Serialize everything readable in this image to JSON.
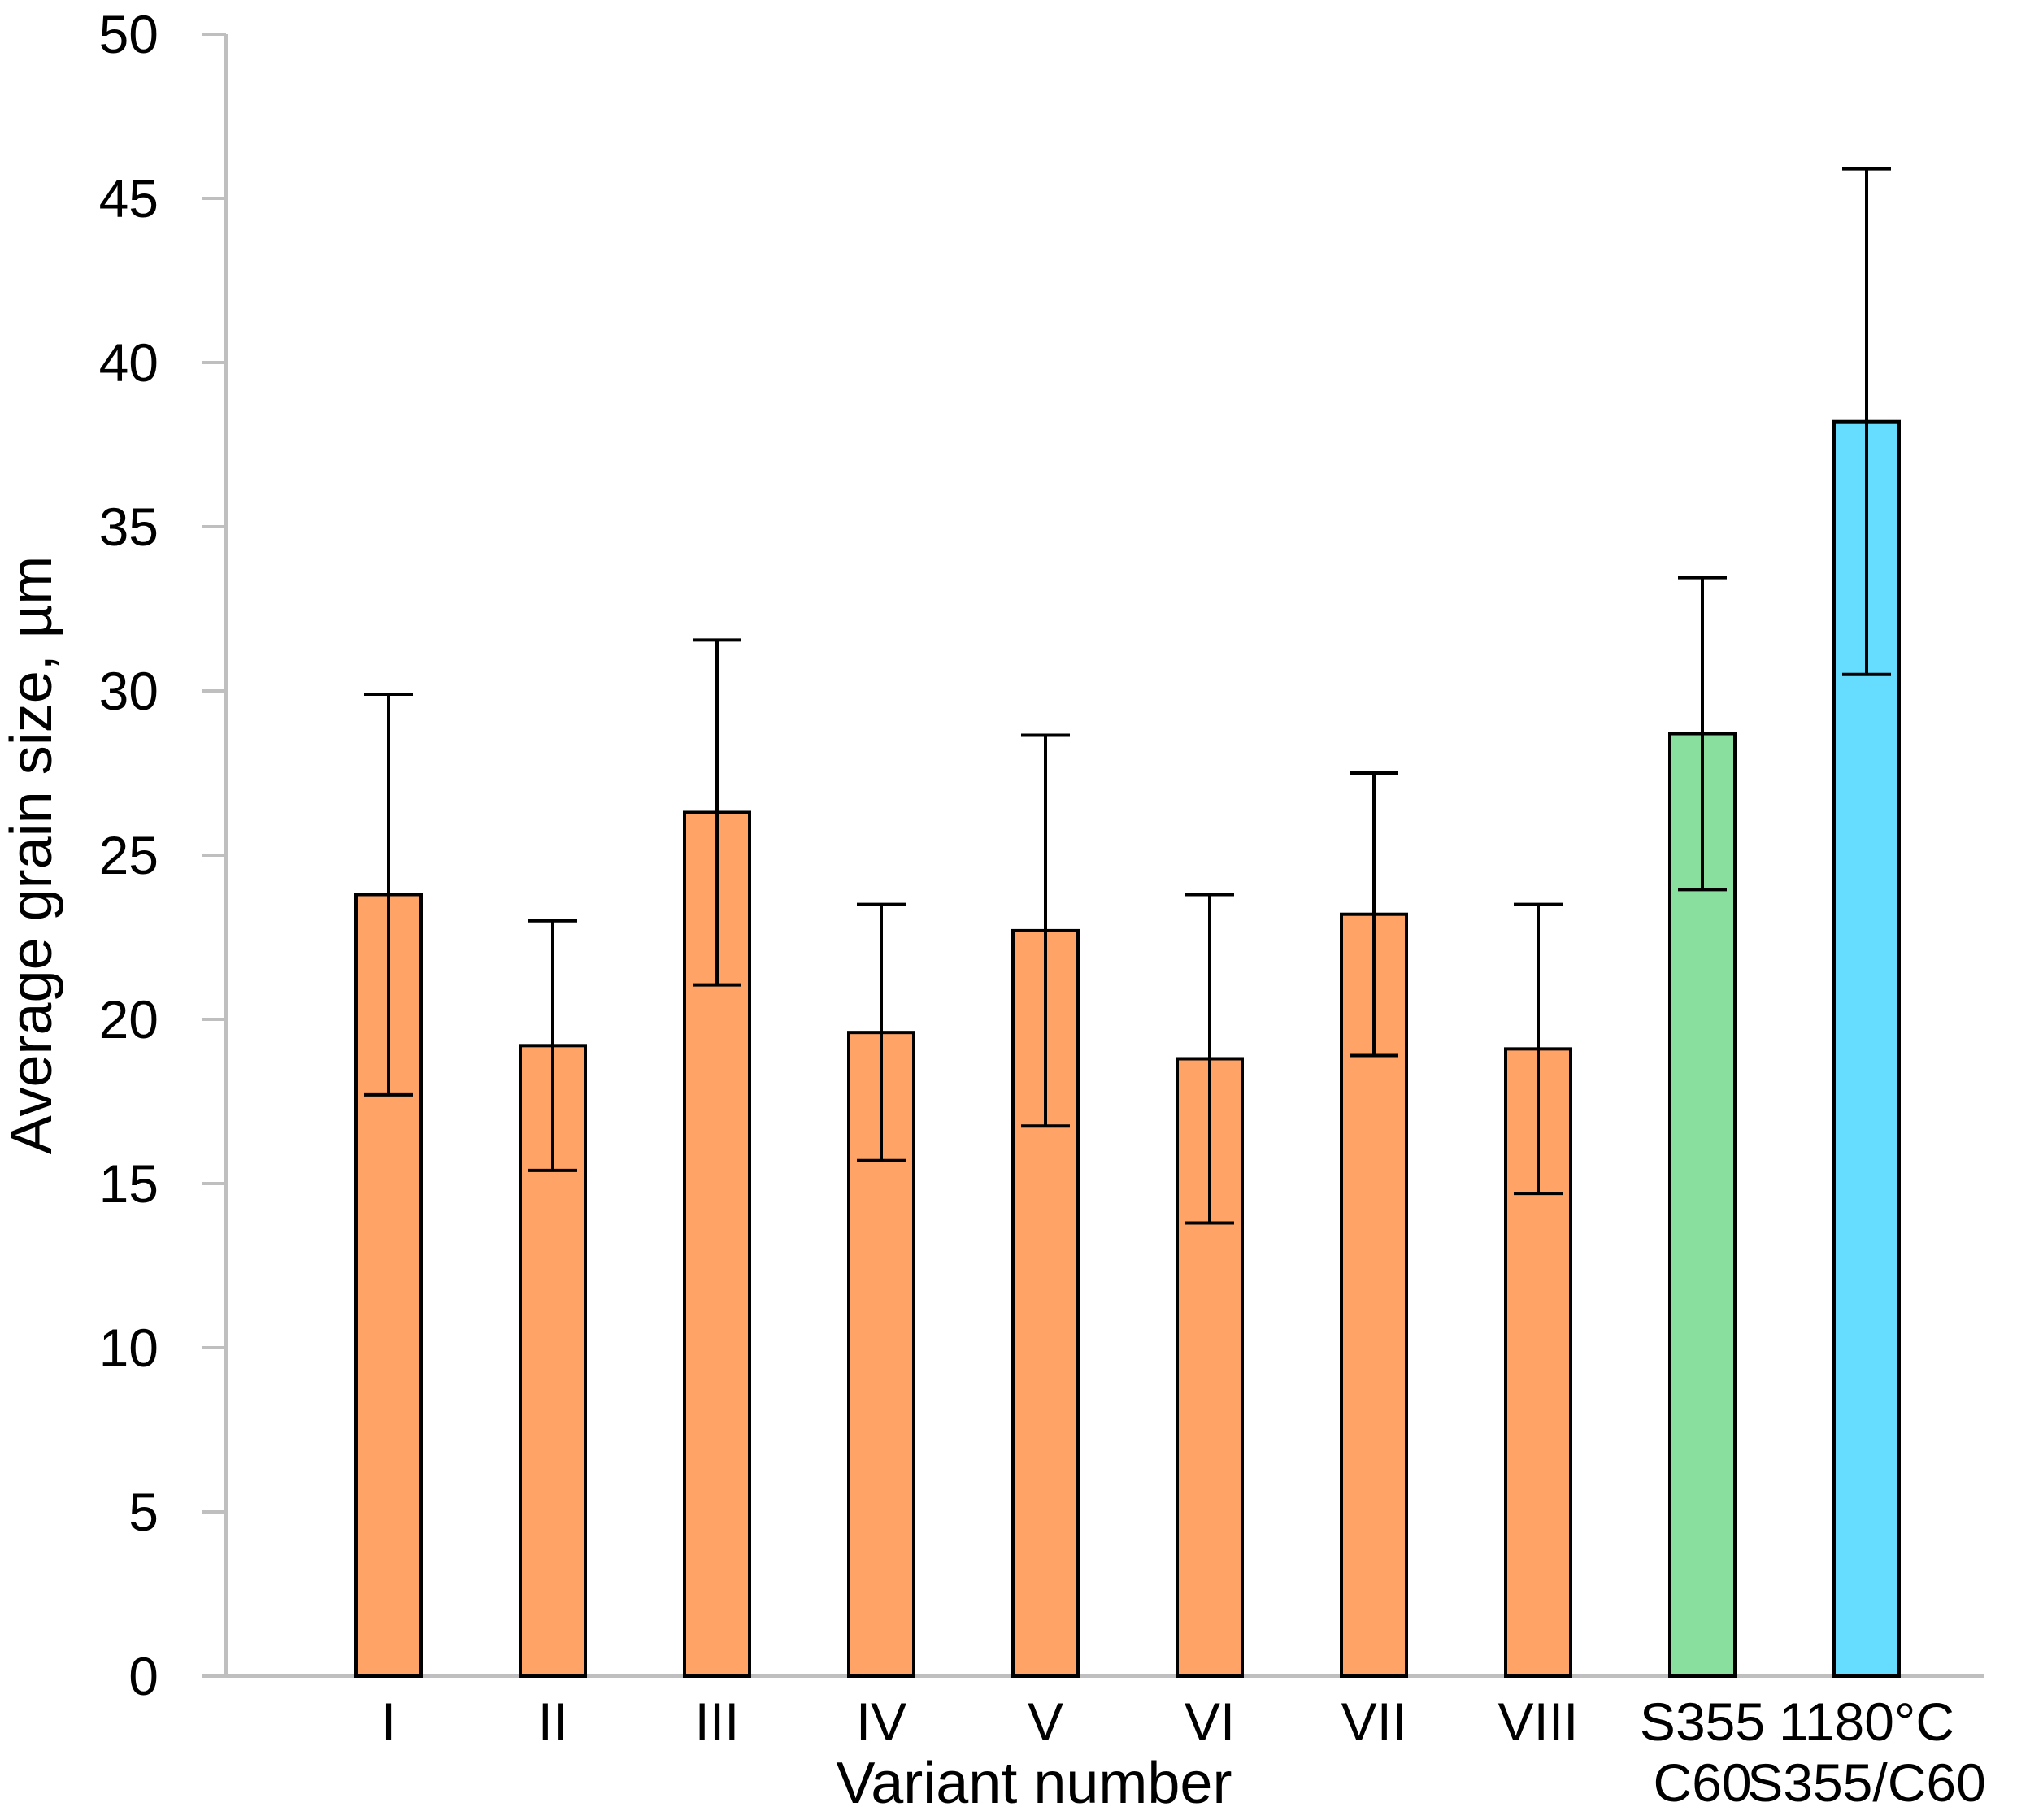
{
  "chart_data": {
    "type": "bar",
    "title": "",
    "xlabel": "Variant number",
    "ylabel": "Average grain size, µm",
    "ylim": [
      0,
      50
    ],
    "yticks": [
      0,
      5,
      10,
      15,
      20,
      25,
      30,
      35,
      40,
      45,
      50
    ],
    "grid": false,
    "legend": "none",
    "categories": [
      [
        "I"
      ],
      [
        "II"
      ],
      [
        "III"
      ],
      [
        "IV"
      ],
      [
        "V"
      ],
      [
        "VI"
      ],
      [
        "VII"
      ],
      [
        "VIII"
      ],
      [
        "S355",
        "C60"
      ],
      [
        "1180°C",
        "S355/C60"
      ]
    ],
    "values": [
      23.8,
      19.2,
      26.3,
      19.6,
      22.7,
      18.8,
      23.2,
      19.1,
      28.7,
      38.2
    ],
    "error": [
      6.1,
      3.8,
      5.25,
      3.9,
      5.95,
      5.0,
      4.3,
      4.4,
      4.75,
      7.7
    ],
    "colors": [
      "#FFA366",
      "#FFA366",
      "#FFA366",
      "#FFA366",
      "#FFA366",
      "#FFA366",
      "#FFA366",
      "#FFA366",
      "#88DF9E",
      "#66DDFF"
    ]
  }
}
